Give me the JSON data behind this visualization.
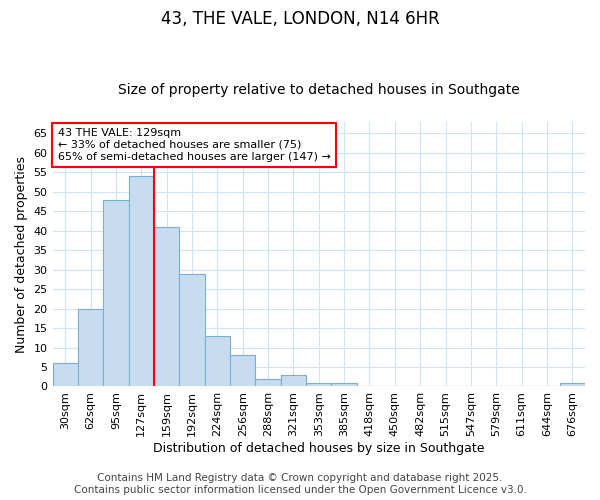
{
  "title1": "43, THE VALE, LONDON, N14 6HR",
  "title2": "Size of property relative to detached houses in Southgate",
  "xlabel": "Distribution of detached houses by size in Southgate",
  "ylabel": "Number of detached properties",
  "bar_labels": [
    "30sqm",
    "62sqm",
    "95sqm",
    "127sqm",
    "159sqm",
    "192sqm",
    "224sqm",
    "256sqm",
    "288sqm",
    "321sqm",
    "353sqm",
    "385sqm",
    "418sqm",
    "450sqm",
    "482sqm",
    "515sqm",
    "547sqm",
    "579sqm",
    "611sqm",
    "644sqm",
    "676sqm"
  ],
  "bar_values": [
    6,
    20,
    48,
    54,
    41,
    29,
    13,
    8,
    2,
    3,
    1,
    1,
    0,
    0,
    0,
    0,
    0,
    0,
    0,
    0,
    1
  ],
  "bar_color": "#c8dcf0",
  "bar_edge_color": "#7aafd4",
  "vline_x": 3.5,
  "vline_color": "red",
  "annotation_title": "43 THE VALE: 129sqm",
  "annotation_line1": "← 33% of detached houses are smaller (75)",
  "annotation_line2": "65% of semi-detached houses are larger (147) →",
  "annotation_box_color": "white",
  "annotation_box_edge_color": "red",
  "ylim": [
    0,
    68
  ],
  "yticks": [
    0,
    5,
    10,
    15,
    20,
    25,
    30,
    35,
    40,
    45,
    50,
    55,
    60,
    65
  ],
  "background_color": "#ffffff",
  "grid_color": "#d0e4f4",
  "title1_fontsize": 12,
  "title2_fontsize": 10,
  "axis_label_fontsize": 9,
  "tick_fontsize": 8,
  "annotation_fontsize": 8,
  "footer_fontsize": 7.5,
  "footer1": "Contains HM Land Registry data © Crown copyright and database right 2025.",
  "footer2": "Contains public sector information licensed under the Open Government Licence v3.0."
}
